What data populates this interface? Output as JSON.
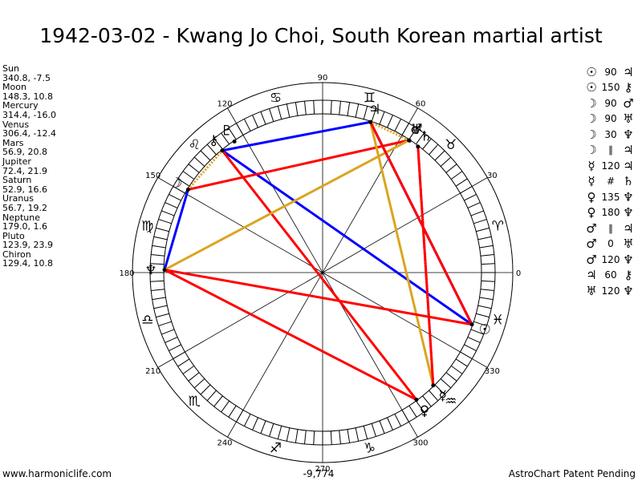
{
  "title": "1942-03-02 - Kwang Jo Choi, South Korean martial artist",
  "footer": {
    "left": "www.harmoniclife.com",
    "center": "-9,774",
    "right": "AstroChart Patent Pending"
  },
  "planets_list": [
    {
      "name": "Sun",
      "values": "340.8, -7.5"
    },
    {
      "name": "Moon",
      "values": "148.3, 10.8"
    },
    {
      "name": "Mercury",
      "values": "314.4, -16.0"
    },
    {
      "name": "Venus",
      "values": "306.4, -12.4"
    },
    {
      "name": "Mars",
      "values": "56.9, 20.8"
    },
    {
      "name": "Jupiter",
      "values": "72.4, 21.9"
    },
    {
      "name": "Saturn",
      "values": "52.9, 16.6"
    },
    {
      "name": "Uranus",
      "values": "56.7, 19.2"
    },
    {
      "name": "Neptune",
      "values": "179.0, 1.6"
    },
    {
      "name": "Pluto",
      "values": "123.9, 23.9"
    },
    {
      "name": "Chiron",
      "values": "129.4, 10.8"
    }
  ],
  "aspects_list": [
    {
      "p1": "☉",
      "angle": "90",
      "p2": "♃"
    },
    {
      "p1": "☉",
      "angle": "150",
      "p2": "⚷"
    },
    {
      "p1": "☽",
      "angle": "90",
      "p2": "♂"
    },
    {
      "p1": "☽",
      "angle": "90",
      "p2": "♅"
    },
    {
      "p1": "☽",
      "angle": "30",
      "p2": "♆"
    },
    {
      "p1": "☽",
      "angle": "∥",
      "p2": "♃"
    },
    {
      "p1": "☿",
      "angle": "120",
      "p2": "♃"
    },
    {
      "p1": "☿",
      "angle": "#",
      "p2": "♄"
    },
    {
      "p1": "♀",
      "angle": "135",
      "p2": "♆"
    },
    {
      "p1": "♀",
      "angle": "180",
      "p2": "♆"
    },
    {
      "p1": "♂",
      "angle": "∥",
      "p2": "♃"
    },
    {
      "p1": "♂",
      "angle": "0",
      "p2": "♅"
    },
    {
      "p1": "♂",
      "angle": "120",
      "p2": "♆"
    },
    {
      "p1": "♃",
      "angle": "60",
      "p2": "⚷"
    },
    {
      "p1": "♅",
      "angle": "120",
      "p2": "♆"
    }
  ],
  "chart_data": {
    "type": "radial",
    "degree_labels": [
      "0",
      "30",
      "60",
      "90",
      "120",
      "150",
      "180",
      "210",
      "240",
      "270",
      "300",
      "330"
    ],
    "colors": {
      "square": "#ff0000",
      "trine": "#0000ff",
      "sextile": "#0000ff",
      "quincunx": "#daa520",
      "opposition": "#ff0000",
      "parallel": "#ff0000"
    },
    "zodiac_signs": [
      {
        "glyph": "♈",
        "lon": 15
      },
      {
        "glyph": "♉",
        "lon": 45
      },
      {
        "glyph": "♊",
        "lon": 75
      },
      {
        "glyph": "♋",
        "lon": 105
      },
      {
        "glyph": "♌",
        "lon": 135
      },
      {
        "glyph": "♍",
        "lon": 165
      },
      {
        "glyph": "♎",
        "lon": 195
      },
      {
        "glyph": "♏",
        "lon": 225
      },
      {
        "glyph": "♐",
        "lon": 255
      },
      {
        "glyph": "♑",
        "lon": 285
      },
      {
        "glyph": "♒",
        "lon": 315
      },
      {
        "glyph": "♓",
        "lon": 345
      }
    ],
    "planets": [
      {
        "glyph": "☉",
        "lon": 340.8
      },
      {
        "glyph": "☽",
        "lon": 148.3
      },
      {
        "glyph": "☿",
        "lon": 314.4
      },
      {
        "glyph": "♀",
        "lon": 306.4
      },
      {
        "glyph": "♂",
        "lon": 56.9
      },
      {
        "glyph": "♃",
        "lon": 72.4
      },
      {
        "glyph": "♄",
        "lon": 52.9
      },
      {
        "glyph": "♅",
        "lon": 56.7
      },
      {
        "glyph": "♆",
        "lon": 179.0
      },
      {
        "glyph": "♇",
        "lon": 123.9
      },
      {
        "glyph": "⚷",
        "lon": 129.4
      }
    ],
    "aspect_lines": [
      {
        "from": 340.8,
        "to": 72.4,
        "color": "#0000ff",
        "style": "solid"
      },
      {
        "from": 340.8,
        "to": 129.4,
        "color": "#0000ff",
        "style": "solid"
      },
      {
        "from": 148.3,
        "to": 56.9,
        "color": "#ff0000",
        "style": "solid"
      },
      {
        "from": 148.3,
        "to": 179.0,
        "color": "#0000ff",
        "style": "solid"
      },
      {
        "from": 148.3,
        "to": 129.4,
        "color": "#daa520",
        "style": "dotted"
      },
      {
        "from": 314.4,
        "to": 72.4,
        "color": "#daa520",
        "style": "solid"
      },
      {
        "from": 314.4,
        "to": 52.9,
        "color": "#ff0000",
        "style": "dotted"
      },
      {
        "from": 306.4,
        "to": 179.0,
        "color": "#ff0000",
        "style": "solid"
      },
      {
        "from": 306.4,
        "to": 129.4,
        "color": "#ff0000",
        "style": "solid"
      },
      {
        "from": 56.9,
        "to": 179.0,
        "color": "#daa520",
        "style": "solid"
      },
      {
        "from": 56.9,
        "to": 72.4,
        "color": "#daa520",
        "style": "dotted"
      },
      {
        "from": 72.4,
        "to": 129.4,
        "color": "#0000ff",
        "style": "solid"
      },
      {
        "from": 340.8,
        "to": 72.4,
        "color": "#ff0000",
        "style": "solid"
      },
      {
        "from": 179.0,
        "to": 340.8,
        "color": "#ff0000",
        "style": "solid"
      },
      {
        "from": 52.9,
        "to": 314.4,
        "color": "#ff0000",
        "style": "solid"
      }
    ]
  }
}
